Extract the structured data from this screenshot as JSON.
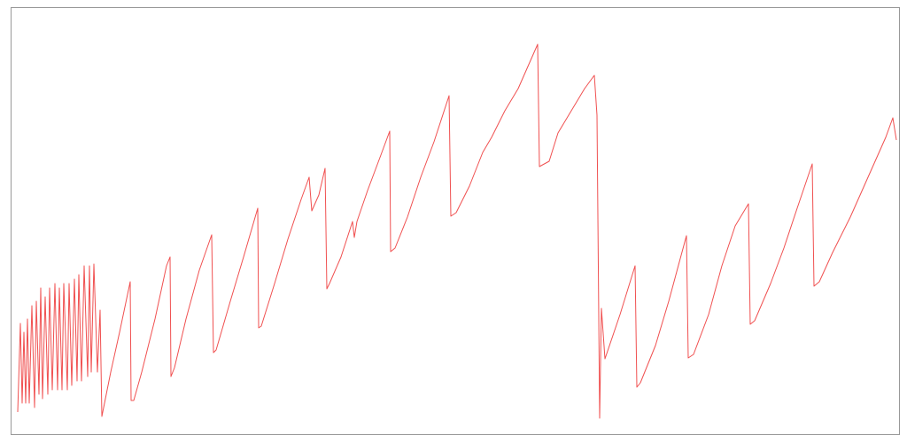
{
  "chart_data": {
    "type": "line",
    "color": "#f05050",
    "xlim": [
      12,
      1016
    ],
    "ylim": [
      0,
      483
    ],
    "x": [
      20,
      23,
      25,
      27,
      29,
      31,
      33,
      36,
      39,
      41,
      44,
      46,
      48,
      51,
      54,
      56,
      59,
      62,
      65,
      67,
      70,
      72,
      76,
      78,
      81,
      84,
      87,
      89,
      92,
      95,
      99,
      101,
      103,
      106,
      110,
      113,
      115,
      118,
      125,
      135,
      147,
      148,
      151,
      160,
      175,
      188,
      192,
      193,
      197,
      210,
      225,
      239,
      241,
      244,
      260,
      275,
      291,
      292,
      295,
      310,
      325,
      340,
      349,
      352,
      360,
      367,
      369,
      372,
      385,
      398,
      400,
      403,
      415,
      430,
      440,
      441,
      446,
      460,
      475,
      490,
      507,
      509,
      515,
      530,
      545,
      555,
      570,
      585,
      607,
      609,
      620,
      630,
      645,
      660,
      671,
      674,
      677,
      679,
      683,
      700,
      717,
      719,
      723,
      740,
      755,
      775,
      777,
      783,
      800,
      815,
      830,
      845,
      847,
      852,
      870,
      885,
      900,
      917,
      919,
      925,
      940,
      960,
      980,
      1000,
      1008,
      1012
    ],
    "values": [
      26,
      126,
      36,
      116,
      36,
      131,
      36,
      146,
      31,
      151,
      46,
      166,
      41,
      156,
      46,
      166,
      51,
      171,
      51,
      166,
      51,
      171,
      51,
      171,
      56,
      176,
      61,
      181,
      61,
      191,
      66,
      191,
      71,
      193,
      71,
      141,
      21,
      36,
      71,
      116,
      173,
      39,
      39,
      71,
      131,
      191,
      201,
      66,
      76,
      131,
      186,
      226,
      93,
      96,
      151,
      201,
      256,
      121,
      123,
      171,
      221,
      266,
      291,
      253,
      271,
      301,
      165,
      171,
      201,
      241,
      223,
      241,
      276,
      316,
      343,
      207,
      211,
      246,
      291,
      331,
      383,
      247,
      251,
      281,
      319,
      336,
      366,
      391,
      441,
      303,
      309,
      341,
      366,
      391,
      406,
      361,
      19,
      143,
      86,
      136,
      191,
      54,
      59,
      101,
      151,
      225,
      87,
      91,
      136,
      191,
      236,
      261,
      125,
      129,
      171,
      211,
      256,
      306,
      168,
      173,
      206,
      246,
      291,
      336,
      358,
      333
    ]
  }
}
